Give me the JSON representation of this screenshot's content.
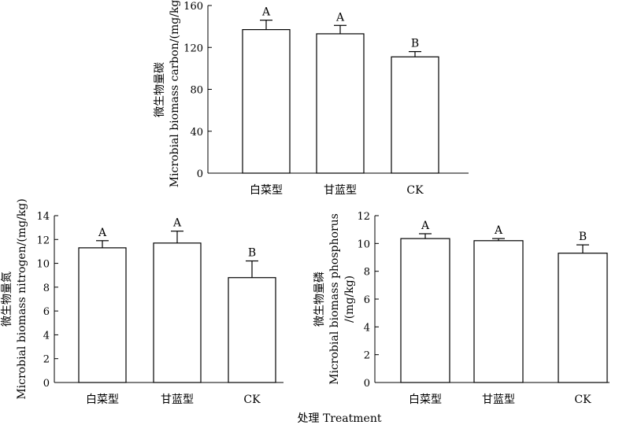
{
  "x_title": "处理 Treatment",
  "chart_data": [
    {
      "type": "bar",
      "categories": [
        "白菜型",
        "甘蓝型",
        "CK"
      ],
      "values": [
        137,
        133,
        111
      ],
      "errors": [
        9,
        8,
        5
      ],
      "letters": [
        "A",
        "A",
        "B"
      ],
      "ylabel_cn": "微生物量碳",
      "ylabel_en": "Microbial biomass carbon/(mg/kg )",
      "ylim": [
        0,
        160
      ],
      "yticks": [
        0,
        40,
        80,
        120,
        160
      ]
    },
    {
      "type": "bar",
      "categories": [
        "白菜型",
        "甘蓝型",
        "CK"
      ],
      "values": [
        11.3,
        11.7,
        8.8
      ],
      "errors": [
        0.6,
        1.0,
        1.4
      ],
      "letters": [
        "A",
        "A",
        "B"
      ],
      "ylabel_cn": "微生物量氮",
      "ylabel_en": "Microbial biomass nitrogen/(mg/kg)",
      "ylim": [
        0,
        14
      ],
      "yticks": [
        0,
        2,
        4,
        6,
        8,
        10,
        12,
        14
      ]
    },
    {
      "type": "bar",
      "categories": [
        "白菜型",
        "甘蓝型",
        "CK"
      ],
      "values": [
        10.35,
        10.2,
        9.3
      ],
      "errors": [
        0.35,
        0.15,
        0.6
      ],
      "letters": [
        "A",
        "A",
        "B"
      ],
      "ylabel_cn": "微生物量磷",
      "ylabel_en": "Microbial biomass phosphorus",
      "ylabel_en2": "/(mg/kg)",
      "ylim": [
        0,
        12
      ],
      "yticks": [
        0,
        2,
        4,
        6,
        8,
        10,
        12
      ]
    }
  ]
}
